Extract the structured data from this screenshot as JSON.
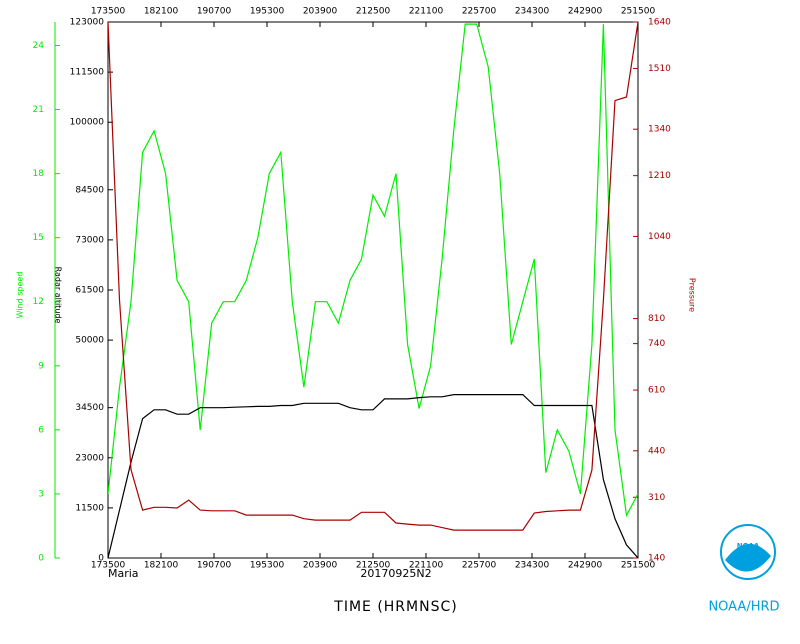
{
  "chart_data": {
    "type": "line",
    "title": "TIME (HRMNSC)",
    "annotations": [
      "Maria",
      "20170925N2",
      "NOAA/HRD",
      "NOAA"
    ],
    "x_label": "TIME (HRMNSC)",
    "y_label": "Wind speed",
    "y2_label": "Radar altitude",
    "y3_label": "Pressure",
    "xlim": [
      173500,
      251500
    ],
    "xticks": [
      173500,
      182100,
      190700,
      195300,
      203900,
      212500,
      221100,
      225700,
      234300,
      242900,
      251500
    ],
    "ylim": [
      0,
      25.1
    ],
    "yticks": [
      0,
      3,
      6,
      9,
      12,
      15,
      18,
      21,
      24
    ],
    "y2lim": [
      0,
      123000
    ],
    "y2ticks": [
      0,
      11500,
      23000,
      34500,
      50000,
      61500,
      73000,
      84500,
      100000,
      111500,
      123000
    ],
    "y3lim": [
      140,
      1640
    ],
    "y3ticks": [
      140,
      310,
      440,
      610,
      740,
      810,
      1040,
      1210,
      1340,
      1510,
      1640
    ],
    "x": [
      173500,
      174500,
      175500,
      180500,
      181500,
      182500,
      183500,
      184500,
      185500,
      190500,
      191500,
      192500,
      193500,
      194500,
      195500,
      200500,
      201500,
      202500,
      203500,
      204500,
      205500,
      210500,
      211500,
      212500,
      213500,
      214500,
      215500,
      220500,
      221500,
      222500,
      223500,
      224500,
      225500,
      230500,
      231500,
      232500,
      233500,
      234500,
      235500,
      240500,
      241500,
      242500,
      243500,
      244500,
      245500,
      250500,
      251500
    ],
    "series": [
      {
        "name": "Wind speed",
        "color": "#00ee00",
        "axis": "y",
        "values": [
          3,
          8,
          12,
          19,
          20,
          18,
          13,
          12,
          6,
          11,
          12,
          12,
          13,
          15,
          18,
          19,
          12,
          8,
          12,
          12,
          11,
          13,
          14,
          17,
          16,
          18,
          10,
          7,
          9,
          14,
          20,
          25,
          25,
          23,
          18,
          10,
          12,
          14,
          4,
          6,
          5,
          3,
          10,
          25,
          6,
          2,
          3
        ]
      },
      {
        "name": "Radar altitude",
        "color": "#000000",
        "axis": "y2",
        "values": [
          0,
          11000,
          22000,
          32000,
          34000,
          34000,
          33000,
          33000,
          34500,
          34500,
          34500,
          34600,
          34700,
          34800,
          34800,
          35000,
          35000,
          35500,
          35500,
          35500,
          35500,
          34500,
          34000,
          34000,
          36500,
          36500,
          36500,
          36800,
          37000,
          37000,
          37500,
          37500,
          37500,
          37500,
          37500,
          37500,
          37500,
          35000,
          35000,
          35000,
          35000,
          35000,
          35000,
          18000,
          9000,
          3000,
          0
        ]
      },
      {
        "name": "Pressure",
        "color": "#aa0000",
        "axis": "y3",
        "values": [
          1640,
          862,
          387,
          274,
          282,
          282,
          280,
          302,
          274,
          272,
          272,
          272,
          260,
          260,
          260,
          260,
          260,
          250,
          246,
          246,
          246,
          246,
          268,
          268,
          268,
          238,
          235,
          232,
          232,
          225,
          218,
          218,
          218,
          218,
          218,
          218,
          218,
          266,
          270,
          272,
          274,
          274,
          386,
          862,
          1420,
          1430,
          1640
        ]
      }
    ]
  }
}
